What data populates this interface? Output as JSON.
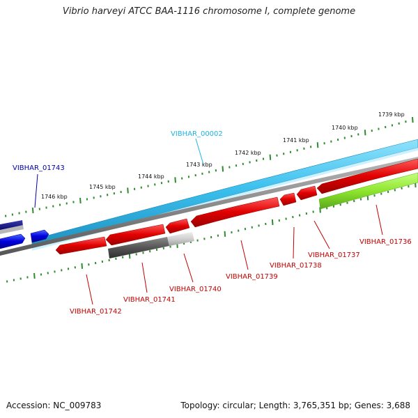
{
  "title": "Vibrio harveyi ATCC BAA-1116 chromosome I, complete genome",
  "footer": {
    "accession": "Accession: NC_009783",
    "summary": "Topology: circular; Length: 3,765,351 bp; Genes: 3,688"
  },
  "colors": {
    "forward_cds": "#1fb3e0",
    "forward_highlight": "#0000dd",
    "forward_dark": "#0a0a7a",
    "reverse_cds": "#e00000",
    "reverse_other": "#8ee62e",
    "pseudogene": "#555555",
    "pseudogene_light": "#c8c8c8",
    "backbone": "#7a7a7a",
    "ticks": "#2e8b2e",
    "label_forward_other": "#0b62c8",
    "label_reverse": "#c40000"
  },
  "tick_labels": [
    "1739 kbp",
    "1740 kbp",
    "1741 kbp",
    "1742 kbp",
    "1743 kbp",
    "1744 kbp",
    "1745 kbp",
    "1746 kbp"
  ],
  "genes": [
    {
      "name": "VIBHAR_00002",
      "strand": "forward",
      "color_key": "label_forward_other"
    },
    {
      "name": "VIBHAR_01743",
      "strand": "forward",
      "color_key": "forward_highlight"
    },
    {
      "name": "VIBHAR_01736",
      "strand": "reverse",
      "color_key": "label_reverse"
    },
    {
      "name": "VIBHAR_01737",
      "strand": "reverse",
      "color_key": "label_reverse"
    },
    {
      "name": "VIBHAR_01738",
      "strand": "reverse",
      "color_key": "label_reverse"
    },
    {
      "name": "VIBHAR_01739",
      "strand": "reverse",
      "color_key": "label_reverse"
    },
    {
      "name": "VIBHAR_01740",
      "strand": "reverse",
      "color_key": "label_reverse"
    },
    {
      "name": "VIBHAR_01741",
      "strand": "reverse",
      "color_key": "label_reverse"
    },
    {
      "name": "VIBHAR_01742",
      "strand": "reverse",
      "color_key": "label_reverse"
    }
  ]
}
